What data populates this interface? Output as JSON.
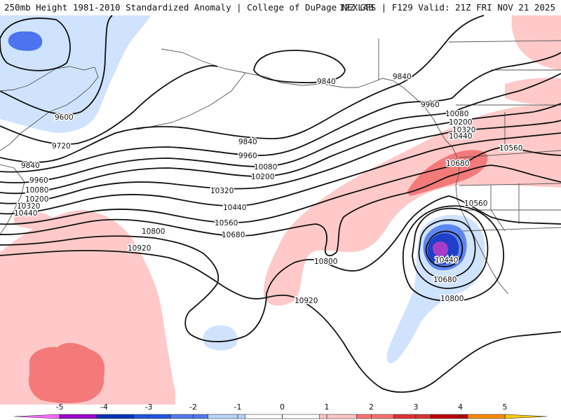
{
  "header": {
    "title_left": "250mb Height 1981-2010 Standardized Anomaly | College of DuPage NEXLAB",
    "title_right": "12Z GFS | F129 Valid: 21Z FRI NOV 21 2025"
  },
  "contour_labels": {
    "c9600": "9600",
    "c9720": "9720",
    "c9840_w": "9840",
    "c9840_c": "9840",
    "c9840_n": "9840",
    "c9840_ne": "9840",
    "c9960_w": "9960",
    "c9960_c": "9960",
    "c9960_e": "9960",
    "c10080_w": "10080",
    "c10080_c": "10080",
    "c10080_e": "10080",
    "c10200_w": "10200",
    "c10200_c": "10200",
    "c10200_e": "10200",
    "c10320_w": "10320",
    "c10320_c": "10320",
    "c10320_e": "10320",
    "c10440_w": "10440",
    "c10440_c": "10440",
    "c10440_e": "10440",
    "c10440_low": "10440",
    "c10560_c": "10560",
    "c10560_ne": "10560",
    "c10560_e": "10560",
    "c10680_c": "10680",
    "c10680_ne": "10680",
    "c10680_low": "10680",
    "c10800_w": "10800",
    "c10800_c": "10800",
    "c10800_low": "10800",
    "c10920_w": "10920",
    "c10920_c": "10920"
  },
  "legend": {
    "colors": [
      "#ff66ff",
      "#9900cc",
      "#0033bb",
      "#2255dd",
      "#5577ee",
      "#b8d4ff",
      "#ffffff",
      "#ffffff",
      "#ffc6c6",
      "#ff7070",
      "#dd3333",
      "#bb0000",
      "#ff8800",
      "#ffcc00"
    ],
    "ticks": [
      {
        "label": "-5",
        "value": -5
      },
      {
        "label": "-4",
        "value": -4
      },
      {
        "label": "-3",
        "value": -3
      },
      {
        "label": "-2",
        "value": -2
      },
      {
        "label": "-1",
        "value": -1
      },
      {
        "label": "0",
        "value": 0
      },
      {
        "label": "1",
        "value": 1
      },
      {
        "label": "2",
        "value": 2
      },
      {
        "label": "3",
        "value": 3
      },
      {
        "label": "4",
        "value": 4
      },
      {
        "label": "5",
        "value": 5
      }
    ]
  }
}
